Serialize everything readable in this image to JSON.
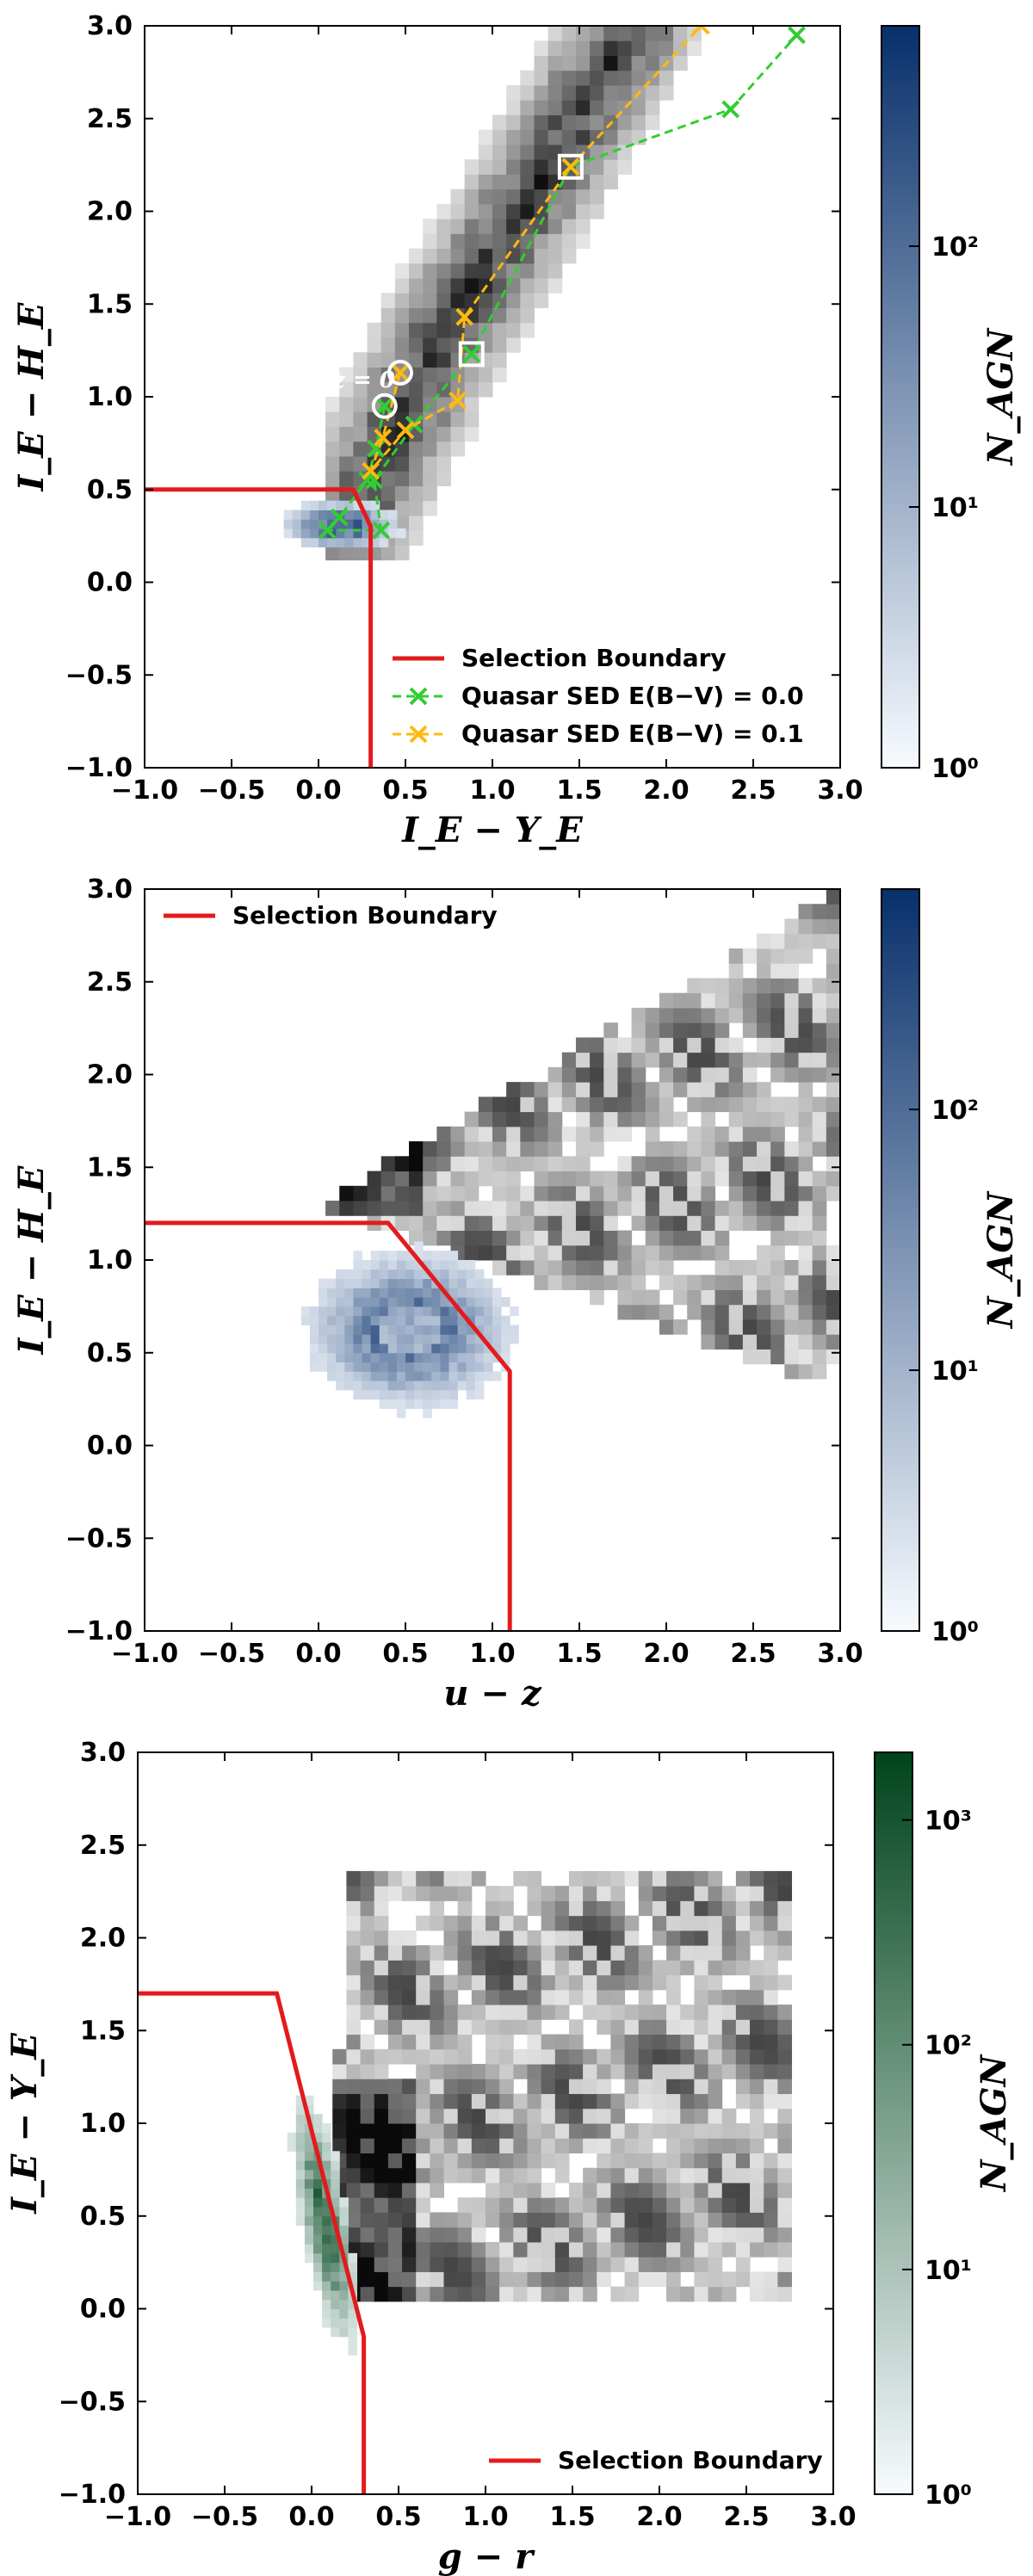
{
  "colors": {
    "boundary": "#e41a1c",
    "agn_blue_max": "#08306b",
    "agn_green_max": "#00441b",
    "sed_e00": "#32cd32",
    "sed_e01": "#ffb90f"
  },
  "chart_data": [
    {
      "type": "heatmap",
      "panel": "top",
      "xlabel": "I_E − Y_E",
      "ylabel": "I_E − H_E",
      "x_tick_labels": [
        "−1.0",
        "−0.5",
        "0.0",
        "0.5",
        "1.0",
        "1.5",
        "2.0",
        "2.5",
        "3.0"
      ],
      "y_tick_labels": [
        "−1.0",
        "−0.5",
        "0.0",
        "0.5",
        "1.0",
        "1.5",
        "2.0",
        "2.5",
        "3.0"
      ],
      "xlim": [
        -1.0,
        3.0
      ],
      "ylim": [
        -1.0,
        3.0
      ],
      "colorbar": {
        "label": "N_AGN",
        "scale": "log",
        "colormap": "Blues",
        "range": [
          1,
          700
        ],
        "tick_labels": [
          "10⁰",
          "10¹",
          "10²"
        ],
        "tick_values": [
          1,
          10,
          100
        ]
      },
      "background_density": {
        "colormap": "Greys",
        "description_ridge": [
          [
            0.2,
            0.35
          ],
          [
            0.7,
            1.3
          ],
          [
            1.3,
            2.2
          ],
          [
            1.8,
            3.0
          ]
        ]
      },
      "agn_density": {
        "center": [
          0.1,
          0.28
        ],
        "spread": [
          0.2,
          0.08
        ]
      },
      "selection_boundary": {
        "name": "Selection Boundary",
        "points": [
          [
            -1.0,
            0.5
          ],
          [
            0.2,
            0.5
          ],
          [
            0.3,
            0.3
          ],
          [
            0.3,
            -1.0
          ]
        ]
      },
      "sed_tracks": [
        {
          "name": "Quasar SED E(B−V) = 0.0",
          "points": [
            [
              0.38,
              0.95
            ],
            [
              0.33,
              0.72
            ],
            [
              0.28,
              0.55
            ],
            [
              0.12,
              0.35
            ],
            [
              0.05,
              0.28
            ],
            [
              0.36,
              0.28
            ],
            [
              0.32,
              0.55
            ],
            [
              0.55,
              0.85
            ],
            [
              0.88,
              1.23
            ],
            [
              1.45,
              2.24
            ],
            [
              2.37,
              2.55
            ],
            [
              2.75,
              2.95
            ]
          ]
        },
        {
          "name": "Quasar SED E(B−V) = 0.1",
          "points": [
            [
              0.47,
              1.13
            ],
            [
              0.37,
              0.78
            ],
            [
              0.3,
              0.6
            ],
            [
              0.5,
              0.82
            ],
            [
              0.8,
              0.98
            ],
            [
              0.84,
              1.43
            ],
            [
              1.45,
              2.24
            ],
            [
              2.2,
              3.0
            ]
          ]
        }
      ],
      "circled_points": [
        [
          0.38,
          0.95
        ],
        [
          0.47,
          1.13
        ]
      ],
      "boxed_points": [
        [
          0.88,
          1.23
        ],
        [
          1.45,
          2.24
        ]
      ],
      "annotation": "z = 0",
      "legend": {
        "placement": "lower-right",
        "entries": [
          "Selection Boundary",
          "Quasar SED E(B−V) = 0.0",
          "Quasar SED E(B−V) = 0.1"
        ]
      }
    },
    {
      "type": "heatmap",
      "panel": "middle",
      "xlabel": "u − z",
      "ylabel": "I_E − H_E",
      "x_tick_labels": [
        "−1.0",
        "−0.5",
        "0.0",
        "0.5",
        "1.0",
        "1.5",
        "2.0",
        "2.5",
        "3.0"
      ],
      "y_tick_labels": [
        "−1.0",
        "−0.5",
        "0.0",
        "0.5",
        "1.0",
        "1.5",
        "2.0",
        "2.5",
        "3.0"
      ],
      "xlim": [
        -1.0,
        3.0
      ],
      "ylim": [
        -1.0,
        3.0
      ],
      "colorbar": {
        "label": "N_AGN",
        "scale": "log",
        "colormap": "Blues",
        "range": [
          1,
          700
        ],
        "tick_labels": [
          "10⁰",
          "10¹",
          "10²"
        ],
        "tick_values": [
          1,
          10,
          100
        ]
      },
      "background_density": {
        "colormap": "Greys",
        "region": [
          [
            0.0,
            1.3
          ],
          [
            3.0,
            0.3
          ],
          [
            3.0,
            3.0
          ]
        ]
      },
      "agn_density": {
        "center": [
          0.5,
          0.6
        ],
        "spread": [
          0.35,
          0.25
        ]
      },
      "selection_boundary": {
        "name": "Selection Boundary",
        "points": [
          [
            -1.0,
            1.2
          ],
          [
            0.4,
            1.2
          ],
          [
            1.1,
            0.4
          ],
          [
            1.1,
            -1.0
          ]
        ]
      },
      "legend": {
        "placement": "upper-left",
        "entries": [
          "Selection Boundary"
        ]
      }
    },
    {
      "type": "heatmap",
      "panel": "bottom",
      "xlabel": "g − r",
      "ylabel": "I_E − Y_E",
      "x_tick_labels": [
        "−1.0",
        "−0.5",
        "0.0",
        "0.5",
        "1.0",
        "1.5",
        "2.0",
        "2.5",
        "3.0"
      ],
      "y_tick_labels": [
        "−1.0",
        "−0.5",
        "0.0",
        "0.5",
        "1.0",
        "1.5",
        "2.0",
        "2.5",
        "3.0"
      ],
      "xlim": [
        -1.0,
        3.0
      ],
      "ylim": [
        -1.0,
        3.0
      ],
      "colorbar": {
        "label": "N_AGN",
        "scale": "log",
        "colormap": "Greens",
        "range": [
          1,
          2000
        ],
        "tick_labels": [
          "10⁰",
          "10¹",
          "10²",
          "10³"
        ],
        "tick_values": [
          1,
          10,
          100,
          1000
        ]
      },
      "background_density": {
        "colormap": "Greys",
        "region": [
          [
            0.1,
            0.0
          ],
          [
            2.8,
            0.0
          ],
          [
            2.8,
            2.4
          ],
          [
            0.2,
            2.4
          ]
        ]
      },
      "agn_density": {
        "center": [
          0.05,
          0.45
        ],
        "spread": [
          0.08,
          0.4
        ]
      },
      "selection_boundary": {
        "name": "Selection Boundary",
        "points": [
          [
            -1.0,
            1.7
          ],
          [
            -0.2,
            1.7
          ],
          [
            0.3,
            -0.15
          ],
          [
            0.3,
            -1.0
          ]
        ]
      },
      "legend": {
        "placement": "lower-right",
        "entries": [
          "Selection Boundary"
        ]
      }
    }
  ]
}
